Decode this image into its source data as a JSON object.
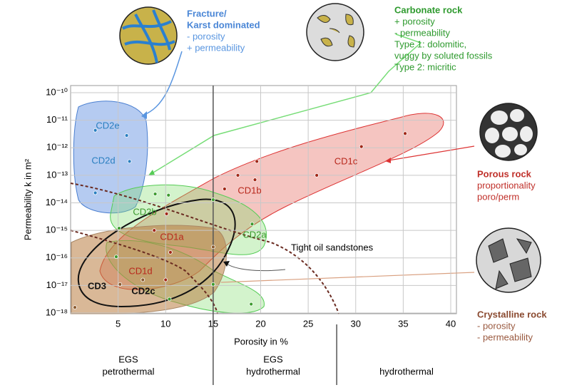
{
  "chart_data": {
    "type": "scatter",
    "x_label": "Porosity in %",
    "y_label": "Permeability k in m²",
    "y_scale": "log",
    "grid": true,
    "xlim": [
      0,
      40
    ],
    "xticks": [
      5,
      10,
      15,
      20,
      25,
      30,
      35,
      40
    ],
    "ylim": [
      1e-18,
      1e-10
    ],
    "yticks": [
      {
        "value": 1e-10,
        "label": "10⁻¹⁰"
      },
      {
        "value": 1e-11,
        "label": "10⁻¹¹"
      },
      {
        "value": 1e-12,
        "label": "10⁻¹²"
      },
      {
        "value": 1e-13,
        "label": "10⁻¹³"
      },
      {
        "value": 1e-14,
        "label": "10⁻¹⁴"
      },
      {
        "value": 1e-15,
        "label": "10⁻¹⁵"
      },
      {
        "value": 1e-16,
        "label": "10⁻¹⁶"
      },
      {
        "value": 1e-17,
        "label": "10⁻¹⁷"
      },
      {
        "value": 1e-18,
        "label": "10⁻¹⁸"
      }
    ],
    "series": [
      {
        "color": "#2a7fc0",
        "x": [
          2.6,
          5.9,
          6.2,
          2.6
        ],
        "values": [
          4.3e-12,
          2.8e-12,
          3.2e-13,
          2.3e-14
        ]
      },
      {
        "color": "#a02818",
        "x": [
          35.2,
          30.6,
          25.9,
          19.6,
          19.4,
          17.6,
          16.2,
          10.1,
          8.8,
          10.5,
          10.0
        ],
        "values": [
          3.3e-12,
          1.1e-12,
          1e-13,
          3.2e-13,
          6.9e-14,
          1e-13,
          3.2e-14,
          4e-15,
          1e-15,
          1.6e-16,
          1.6e-17
        ]
      },
      {
        "color": "#3c9a2e",
        "x": [
          8.9,
          10.3,
          5.1,
          15.0,
          19.1,
          4.8,
          10.4,
          19.0,
          15.0
        ],
        "values": [
          2.1e-14,
          1.9e-14,
          1.2e-15,
          1.3e-14,
          1.7e-15,
          1.1e-16,
          3.2e-18,
          2.1e-18,
          1.1e-17
        ]
      },
      {
        "color": "#8a5a30",
        "x": [
          0.45,
          5.2,
          7.6,
          15.0
        ],
        "values": [
          1.6e-18,
          1.1e-17,
          1.6e-17,
          2.5e-16
        ]
      }
    ],
    "zone_boundaries": [
      15,
      28
    ],
    "region_labels": [
      {
        "text": "CD2e",
        "color": "#2a7fc0"
      },
      {
        "text": "CD2d",
        "color": "#2a7fc0"
      },
      {
        "text": "CD1c",
        "color": "#b8281c"
      },
      {
        "text": "CD1b",
        "color": "#b8281c"
      },
      {
        "text": "CD2b",
        "color": "#3c9a2e"
      },
      {
        "text": "CD1a",
        "color": "#b8281c"
      },
      {
        "text": "CD2a",
        "color": "#3c9a2e"
      },
      {
        "text": "CD1d",
        "color": "#b8281c"
      },
      {
        "text": "CD3",
        "color": "#111111"
      },
      {
        "text": "CD2c",
        "color": "#111111"
      }
    ],
    "annotation": "Tight oil sandstones",
    "rock_types": [
      {
        "title_lines": [
          "Fracture/",
          "Karst dominated"
        ],
        "lines": [
          "- porosity",
          "+ permeability"
        ],
        "title_color": "#4a86d6",
        "color": "#5a96e0"
      },
      {
        "title_lines": [
          "Carbonate rock"
        ],
        "lines": [
          "+ porosity",
          "- permeability",
          "Type 1: dolomitic,",
          "vuggy by soluted fossils",
          "Type 2: micritic"
        ],
        "title_color": "#2e9a2e",
        "color": "#2e9a2e"
      },
      {
        "title_lines": [
          "Porous rock"
        ],
        "lines": [
          "proportionality",
          "poro/perm"
        ],
        "title_color": "#c0302a",
        "color": "#c0302a"
      },
      {
        "title_lines": [
          "Crystalline rock"
        ],
        "lines": [
          "- porosity",
          "- permeability"
        ],
        "title_color": "#8a4a30",
        "color": "#9a5a40"
      }
    ],
    "zones": [
      {
        "lines": [
          "EGS",
          "petrothermal"
        ]
      },
      {
        "lines": [
          "EGS",
          "hydrothermal"
        ]
      },
      {
        "lines": [
          "hydrothermal"
        ]
      }
    ]
  }
}
